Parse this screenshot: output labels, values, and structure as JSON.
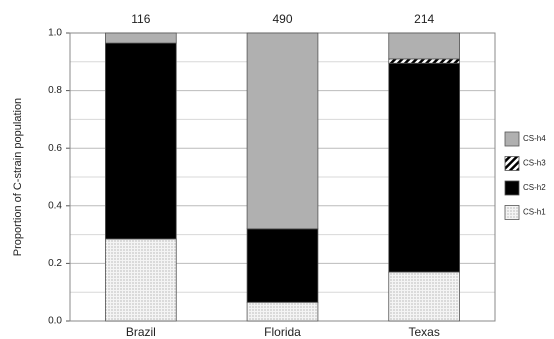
{
  "chart_data": {
    "type": "stacked_bar",
    "ylabel": "Proportion of C-strain population",
    "categories": [
      "Brazil",
      "Florida",
      "Texas"
    ],
    "annotations": [
      116,
      490,
      214
    ],
    "series": [
      {
        "name": "CS-h1",
        "color": "#eeeeee",
        "pattern": "dots",
        "values": [
          0.285,
          0.065,
          0.17
        ]
      },
      {
        "name": "CS-h2",
        "color": "#000000",
        "pattern": null,
        "values": [
          0.68,
          0.255,
          0.725
        ]
      },
      {
        "name": "CS-h3",
        "color": "#ffffff",
        "pattern": "hatch",
        "values": [
          0,
          0,
          0.015
        ]
      },
      {
        "name": "CS-h4",
        "color": "#b0b0b0",
        "pattern": null,
        "values": [
          0.035,
          0.68,
          0.09
        ]
      }
    ],
    "ylim": [
      0,
      1
    ],
    "yticks": [
      {
        "value": 0,
        "label": "0.0"
      },
      {
        "value": 0.2,
        "label": "0.2"
      },
      {
        "value": 0.4,
        "label": "0.4"
      },
      {
        "value": 0.6,
        "label": "0.6"
      },
      {
        "value": 0.8,
        "label": "0.8"
      },
      {
        "value": 1,
        "label": "1.0"
      }
    ],
    "minor_grid": [
      0.1,
      0.3,
      0.5,
      0.7,
      0.9
    ],
    "grid": true,
    "legend": "right"
  }
}
